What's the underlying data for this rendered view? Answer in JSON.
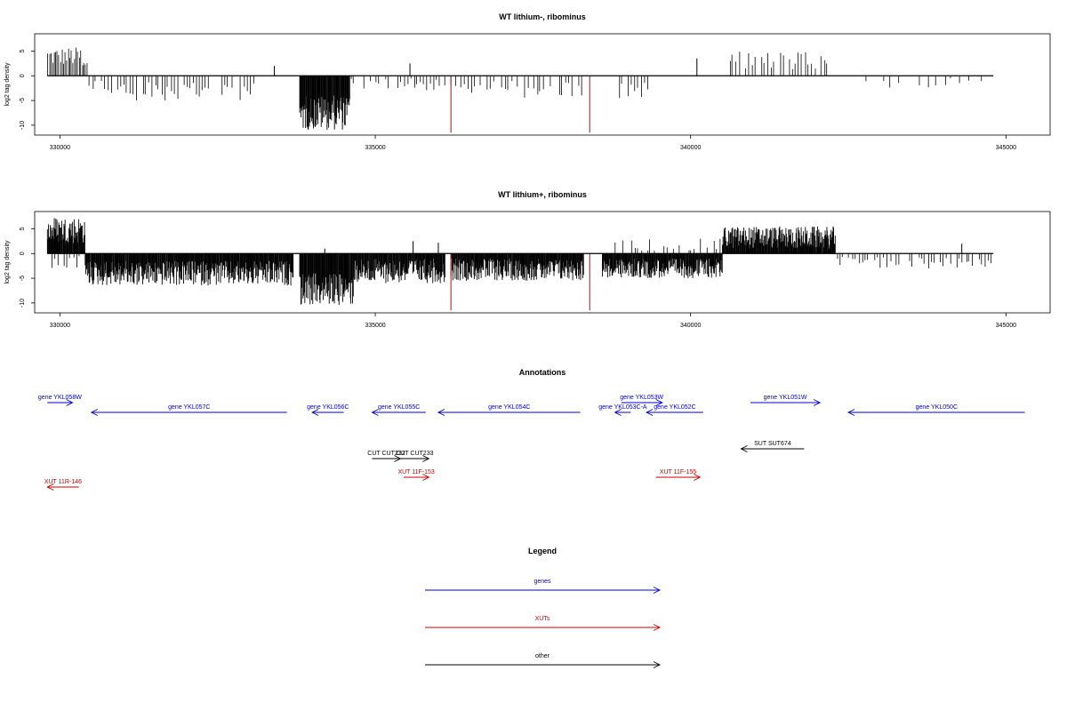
{
  "chart_data": [
    {
      "type": "bar",
      "title": "WT lithium-, ribominus",
      "xlabel": "",
      "ylabel": "log2 tag density",
      "xlim": [
        329600,
        345700
      ],
      "ylim": [
        -12,
        8.5
      ],
      "x_ticks": [
        330000,
        335000,
        340000,
        345000
      ],
      "x_tick_labels": [
        "330000",
        "335000",
        "340000",
        "345000"
      ],
      "y_ticks": [
        -10,
        -5,
        0,
        5
      ],
      "y_tick_labels": [
        "-10",
        "-5",
        "0",
        "5"
      ],
      "colors": {
        "bars": "#000000",
        "marker": "#cc0000"
      },
      "data_start": 329800,
      "data_end": 344800,
      "regions": [
        {
          "x": [
            329800,
            330350
          ],
          "y": [
            2,
            5.8
          ],
          "dir": 1
        },
        {
          "x": [
            330350,
            330450
          ],
          "y": [
            0.5,
            3.5
          ],
          "dir": 1
        },
        {
          "x": [
            330450,
            333200
          ],
          "y": [
            -1,
            -5
          ],
          "dir": -1,
          "sparse": true
        },
        {
          "x": [
            333800,
            334600
          ],
          "y": [
            -4,
            -11
          ],
          "dir": -1,
          "dense": true
        },
        {
          "x": [
            334600,
            336000
          ],
          "y": [
            -0.5,
            -3
          ],
          "dir": -1,
          "sparse": true
        },
        {
          "x": [
            336000,
            338300
          ],
          "y": [
            -1,
            -4.5
          ],
          "dir": -1,
          "sparse": true
        },
        {
          "x": [
            338800,
            339400
          ],
          "y": [
            -1,
            -4.5
          ],
          "dir": -1,
          "sparse": true
        },
        {
          "x": [
            340600,
            342200
          ],
          "y": [
            1,
            5
          ],
          "dir": 1,
          "sparse": true
        },
        {
          "x": [
            342300,
            344700
          ],
          "y": [
            -0.5,
            -2.5
          ],
          "dir": -1,
          "very_sparse": true
        }
      ],
      "spikes": [
        {
          "x": 336200,
          "y": -11.5,
          "color": "#cc0000"
        },
        {
          "x": 338400,
          "y": -11.5,
          "color": "#cc0000"
        },
        {
          "x": 335550,
          "y": 2.5,
          "color": "#000000"
        },
        {
          "x": 333400,
          "y": 2,
          "color": "#000000"
        },
        {
          "x": 340100,
          "y": 3.5,
          "color": "#000000"
        }
      ]
    },
    {
      "type": "bar",
      "title": "WT lithium+, ribominus",
      "xlabel": "",
      "ylabel": "log2 tag density",
      "xlim": [
        329600,
        345700
      ],
      "ylim": [
        -12,
        8.5
      ],
      "x_ticks": [
        330000,
        335000,
        340000,
        345000
      ],
      "x_tick_labels": [
        "330000",
        "335000",
        "340000",
        "345000"
      ],
      "y_ticks": [
        -10,
        -5,
        0,
        5
      ],
      "y_tick_labels": [
        "-10",
        "-5",
        "0",
        "5"
      ],
      "colors": {
        "bars": "#000000",
        "marker": "#cc0000"
      },
      "data_start": 329800,
      "data_end": 344800,
      "regions": [
        {
          "x": [
            329800,
            330400
          ],
          "y": [
            2,
            7.5
          ],
          "dir": 1,
          "dense": true
        },
        {
          "x": [
            329800,
            330400
          ],
          "y": [
            -0.5,
            -3
          ],
          "dir": -1,
          "sparse": true
        },
        {
          "x": [
            330400,
            333700
          ],
          "y": [
            -1.5,
            -6.5
          ],
          "dir": -1,
          "dense": true
        },
        {
          "x": [
            333800,
            334650
          ],
          "y": [
            -4,
            -10.5
          ],
          "dir": -1,
          "dense": true
        },
        {
          "x": [
            334650,
            336100
          ],
          "y": [
            -1,
            -6
          ],
          "dir": -1,
          "dense": true
        },
        {
          "x": [
            336200,
            338300
          ],
          "y": [
            -1,
            -5.5
          ],
          "dir": -1,
          "dense": true
        },
        {
          "x": [
            338600,
            340500
          ],
          "y": [
            -1,
            -5
          ],
          "dir": -1,
          "dense": true
        },
        {
          "x": [
            338800,
            340500
          ],
          "y": [
            0.5,
            3
          ],
          "dir": 1,
          "sparse": true
        },
        {
          "x": [
            340500,
            342300
          ],
          "y": [
            1,
            5.5
          ],
          "dir": 1,
          "dense": true
        },
        {
          "x": [
            342300,
            344800
          ],
          "y": [
            -0.5,
            -3
          ],
          "dir": -1,
          "sparse": true
        }
      ],
      "spikes": [
        {
          "x": 336200,
          "y": -11.5,
          "color": "#cc0000"
        },
        {
          "x": 338400,
          "y": -11.5,
          "color": "#cc0000"
        },
        {
          "x": 335600,
          "y": 2.5,
          "color": "#000000"
        },
        {
          "x": 336000,
          "y": 2.2,
          "color": "#000000"
        },
        {
          "x": 334200,
          "y": 1,
          "color": "#000000"
        },
        {
          "x": 344300,
          "y": 2,
          "color": "#000000"
        }
      ]
    }
  ],
  "annotations": {
    "title": "Annotations",
    "colors": {
      "gene": "#0000cc",
      "xut": "#cc0000",
      "other": "#000000"
    },
    "features": [
      {
        "label": "gene YKL058W",
        "start": 329800,
        "end": 330200,
        "strand": "+",
        "row": 0,
        "type": "gene"
      },
      {
        "label": "gene YKL057C",
        "start": 330500,
        "end": 333600,
        "strand": "-",
        "row": 1,
        "type": "gene"
      },
      {
        "label": "gene YKL056C",
        "start": 334000,
        "end": 334500,
        "strand": "-",
        "row": 1,
        "type": "gene"
      },
      {
        "label": "gene YKL055C",
        "start": 334950,
        "end": 335800,
        "strand": "-",
        "row": 1,
        "type": "gene"
      },
      {
        "label": "gene YKL054C",
        "start": 336000,
        "end": 338250,
        "strand": "-",
        "row": 1,
        "type": "gene"
      },
      {
        "label": "gene YKL053W",
        "start": 338900,
        "end": 339550,
        "strand": "+",
        "row": 0,
        "type": "gene"
      },
      {
        "label": "gene YKL053C-A",
        "start": 338800,
        "end": 339050,
        "strand": "-",
        "row": 1,
        "type": "gene"
      },
      {
        "label": "gene YKL052C",
        "start": 339300,
        "end": 340200,
        "strand": "-",
        "row": 1,
        "type": "gene"
      },
      {
        "label": "gene YKL051W",
        "start": 340950,
        "end": 342050,
        "strand": "+",
        "row": 0,
        "type": "gene"
      },
      {
        "label": "gene YKL050C",
        "start": 342500,
        "end": 345300,
        "strand": "-",
        "row": 1,
        "type": "gene"
      },
      {
        "label": "SUT SUT674",
        "start": 340800,
        "end": 341800,
        "strand": "-",
        "row": 3,
        "type": "other"
      },
      {
        "label": "CUT CUT232",
        "start": 334950,
        "end": 335400,
        "strand": "+",
        "row": 4,
        "type": "other"
      },
      {
        "label": "CUT CUT233",
        "start": 335400,
        "end": 335850,
        "strand": "+",
        "row": 4,
        "type": "other"
      },
      {
        "label": "XUT 11R-146",
        "start": 329800,
        "end": 330300,
        "strand": "-",
        "row": 6,
        "type": "xut"
      },
      {
        "label": "XUT 11F-153",
        "start": 335450,
        "end": 335850,
        "strand": "+",
        "row": 5,
        "type": "xut"
      },
      {
        "label": "XUT 11F-155",
        "start": 339450,
        "end": 340150,
        "strand": "+",
        "row": 5,
        "type": "xut"
      }
    ]
  },
  "legend": {
    "title": "Legend",
    "items": [
      {
        "label": "genes",
        "color": "#0000cc"
      },
      {
        "label": "XUTs",
        "color": "#cc0000"
      },
      {
        "label": "other",
        "color": "#000000"
      }
    ]
  }
}
